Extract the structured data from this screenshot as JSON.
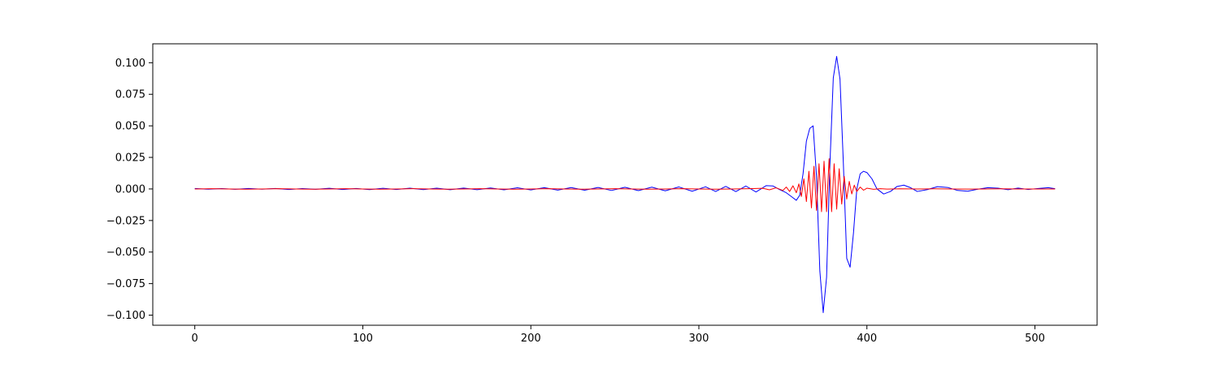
{
  "chart_data": {
    "type": "line",
    "title": "",
    "xlabel": "",
    "ylabel": "",
    "xlim": [
      -25,
      537
    ],
    "ylim": [
      -0.108,
      0.115
    ],
    "grid": false,
    "legend": "none",
    "x_ticks": [
      {
        "value": 0,
        "label": "0"
      },
      {
        "value": 100,
        "label": "100"
      },
      {
        "value": 200,
        "label": "200"
      },
      {
        "value": 300,
        "label": "300"
      },
      {
        "value": 400,
        "label": "400"
      },
      {
        "value": 500,
        "label": "500"
      }
    ],
    "y_ticks": [
      {
        "value": -0.1,
        "label": "−0.100"
      },
      {
        "value": -0.075,
        "label": "−0.075"
      },
      {
        "value": -0.05,
        "label": "−0.050"
      },
      {
        "value": -0.025,
        "label": "−0.025"
      },
      {
        "value": 0.0,
        "label": "0.000"
      },
      {
        "value": 0.025,
        "label": "0.025"
      },
      {
        "value": 0.05,
        "label": "0.050"
      },
      {
        "value": 0.075,
        "label": "0.075"
      },
      {
        "value": 0.1,
        "label": "0.100"
      }
    ],
    "series": [
      {
        "color": "#0000ff",
        "x": [
          0,
          8,
          16,
          24,
          32,
          40,
          48,
          56,
          64,
          72,
          80,
          88,
          96,
          104,
          112,
          120,
          128,
          136,
          144,
          152,
          160,
          168,
          176,
          184,
          192,
          200,
          208,
          216,
          224,
          232,
          240,
          248,
          256,
          264,
          272,
          280,
          288,
          296,
          304,
          310,
          316,
          322,
          328,
          334,
          340,
          344,
          348,
          352,
          355,
          358,
          360,
          362,
          364,
          366,
          368,
          370,
          372,
          374,
          376,
          378,
          380,
          382,
          384,
          386,
          388,
          390,
          392,
          394,
          396,
          398,
          400,
          403,
          406,
          410,
          414,
          418,
          422,
          426,
          430,
          436,
          442,
          448,
          454,
          460,
          466,
          472,
          478,
          484,
          490,
          496,
          502,
          508,
          512
        ],
        "y": [
          0.0004,
          -0.0002,
          0.0003,
          -0.0003,
          0.0004,
          -0.0002,
          0.0004,
          -0.0004,
          0.0003,
          -0.0003,
          0.0005,
          -0.0004,
          0.0004,
          -0.0005,
          0.0005,
          -0.0004,
          0.0006,
          -0.0005,
          0.0006,
          -0.0006,
          0.0007,
          -0.0006,
          0.0008,
          -0.0007,
          0.0009,
          -0.0008,
          0.001,
          -0.0009,
          0.0011,
          -0.001,
          0.0012,
          -0.0012,
          0.0013,
          -0.0013,
          0.0014,
          -0.0015,
          0.0016,
          -0.0018,
          0.0017,
          -0.002,
          0.002,
          -0.0021,
          0.0023,
          -0.0024,
          0.0026,
          0.0024,
          -0.0005,
          -0.003,
          -0.006,
          -0.009,
          -0.005,
          0.012,
          0.038,
          0.048,
          0.05,
          0.01,
          -0.065,
          -0.098,
          -0.07,
          0.02,
          0.088,
          0.105,
          0.087,
          0.02,
          -0.055,
          -0.062,
          -0.035,
          0.0,
          0.012,
          0.014,
          0.013,
          0.008,
          0.0,
          -0.004,
          -0.002,
          0.002,
          0.003,
          0.001,
          -0.002,
          -0.0005,
          0.0018,
          0.0012,
          -0.0012,
          -0.0018,
          -0.0002,
          0.001,
          0.0006,
          -0.0006,
          0.0007,
          -0.0004,
          0.0004,
          0.001,
          0.0002
        ]
      },
      {
        "color": "#ff0000",
        "x": [
          0,
          10,
          20,
          30,
          40,
          50,
          60,
          70,
          80,
          90,
          100,
          110,
          120,
          130,
          140,
          150,
          160,
          170,
          180,
          190,
          200,
          210,
          220,
          230,
          240,
          250,
          260,
          270,
          280,
          290,
          300,
          310,
          320,
          330,
          338,
          342,
          346,
          350,
          352,
          354,
          356,
          358,
          359.5,
          361,
          362.5,
          364,
          365.5,
          367,
          368.5,
          370,
          371.5,
          373,
          374.5,
          376,
          377.5,
          379,
          380.5,
          382,
          383.5,
          385,
          386.5,
          388,
          389.5,
          391,
          392.5,
          394,
          396,
          398,
          400,
          404,
          408,
          412,
          420,
          430,
          440,
          450,
          460,
          470,
          480,
          490,
          500,
          512
        ],
        "y": [
          0.0,
          0.0002,
          0.0,
          -0.0002,
          0.0,
          0.0002,
          0.0,
          -0.0002,
          0.0,
          0.0002,
          0.0,
          -0.0002,
          0.0,
          0.0002,
          0.0,
          -0.0002,
          0.0,
          0.0002,
          0.0,
          -0.0002,
          0.0,
          0.0002,
          0.0,
          -0.0002,
          0.0,
          0.0002,
          0.0,
          -0.0002,
          0.0,
          0.0002,
          0.0,
          -0.0002,
          0.0,
          0.0002,
          0.0005,
          -0.0007,
          0.0009,
          -0.0012,
          0.0015,
          -0.002,
          0.0025,
          -0.003,
          0.004,
          -0.006,
          0.008,
          -0.01,
          0.014,
          -0.015,
          0.018,
          -0.017,
          0.02,
          -0.018,
          0.022,
          -0.018,
          0.024,
          -0.018,
          0.02,
          -0.016,
          0.016,
          -0.012,
          0.01,
          -0.008,
          0.006,
          -0.004,
          0.003,
          -0.002,
          0.0015,
          -0.001,
          0.0006,
          -0.0003,
          0.0002,
          -0.0001,
          0.0001,
          0.0,
          0.0001,
          0.0,
          -0.0001,
          0.0,
          0.0001,
          0.0,
          0.0,
          0.0
        ]
      }
    ]
  }
}
